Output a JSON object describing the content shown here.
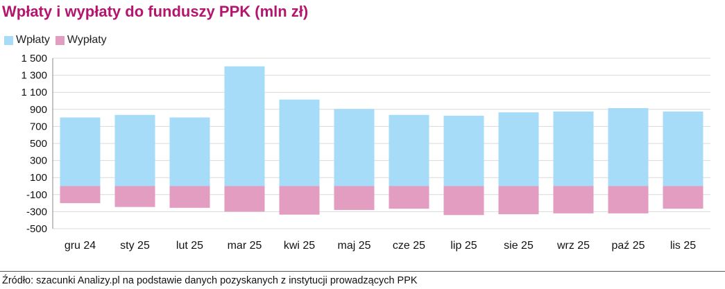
{
  "title": "Wpłaty i wypłaty do funduszy PPK (mln zł)",
  "source": "Źródło: szacunki Analizy.pl na podstawie danych pozyskanych z instytucji prowadzących PPK",
  "colors": {
    "title": "#b3156f",
    "wplaty": "#a6dcf8",
    "wyplaty": "#e29dc0",
    "grid": "#d9d9d9",
    "axis": "#888888"
  },
  "chart_data": {
    "type": "bar",
    "stacked": true,
    "title": "Wpłaty i wypłaty do funduszy PPK (mln zł)",
    "xlabel": "",
    "ylabel": "",
    "legend_position": "top-left",
    "grid": true,
    "ylim": [
      -500,
      1500
    ],
    "yticks": [
      -500,
      -300,
      -100,
      100,
      300,
      500,
      700,
      900,
      1100,
      1300,
      1500
    ],
    "ytick_labels": [
      "-500",
      "-300",
      "-100",
      "100",
      "300",
      "500",
      "700",
      "900",
      "1 100",
      "1 300",
      "1 500"
    ],
    "categories": [
      "gru 24",
      "sty 25",
      "lut 25",
      "mar 25",
      "kwi 25",
      "maj 25",
      "cze 25",
      "lip 25",
      "sie 25",
      "wrz 25",
      "paź 25",
      "lis 25"
    ],
    "series": [
      {
        "name": "Wpłaty",
        "values": [
          805,
          835,
          805,
          1405,
          1015,
          905,
          835,
          825,
          865,
          875,
          915,
          875
        ]
      },
      {
        "name": "Wypłaty",
        "values": [
          -200,
          -245,
          -255,
          -300,
          -335,
          -280,
          -265,
          -340,
          -330,
          -320,
          -320,
          -265
        ]
      }
    ]
  }
}
